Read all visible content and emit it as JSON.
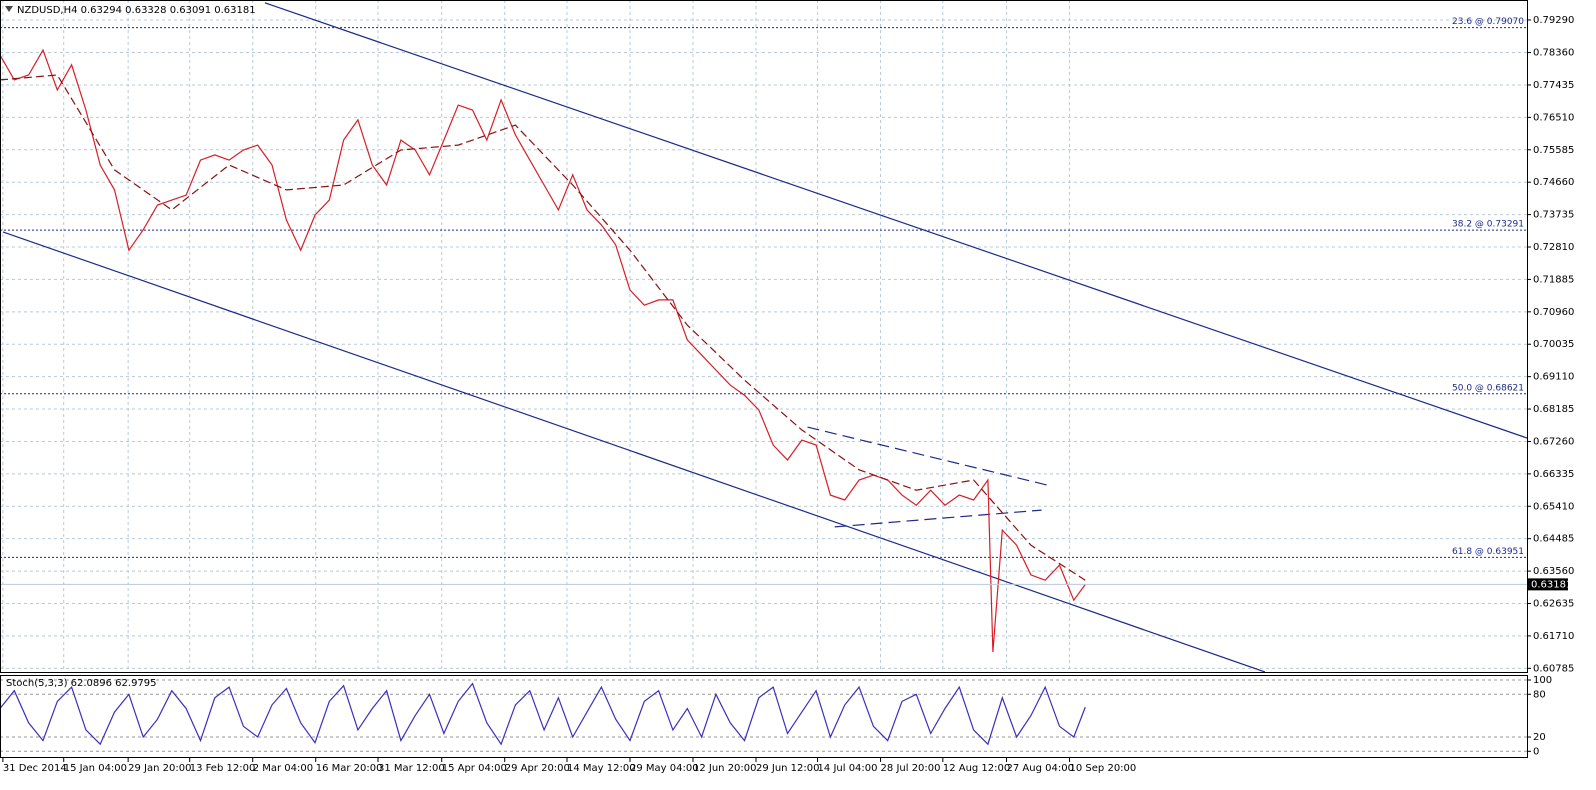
{
  "chart_data": [
    {
      "type": "line",
      "title": "NZDUSD,H4  0.63294 0.63328 0.63091 0.63181",
      "xlim": [
        0,
        2133
      ],
      "ylim": [
        0.6068,
        0.7986
      ],
      "grid": true,
      "xticks": [
        {
          "value": 4,
          "label": "31 Dec 2014"
        },
        {
          "value": 89,
          "label": "15 Jan 04:00"
        },
        {
          "value": 179,
          "label": "29 Jan 20:00"
        },
        {
          "value": 265,
          "label": "13 Feb 12:00"
        },
        {
          "value": 353,
          "label": "2 Mar 04:00"
        },
        {
          "value": 441,
          "label": "16 Mar 20:00"
        },
        {
          "value": 528,
          "label": "31 Mar 12:00"
        },
        {
          "value": 617,
          "label": "15 Apr 04:00"
        },
        {
          "value": 705,
          "label": "29 Apr 20:00"
        },
        {
          "value": 792,
          "label": "14 May 12:00"
        },
        {
          "value": 880,
          "label": "29 May 04:00"
        },
        {
          "value": 968,
          "label": "12 Jun 20:00"
        },
        {
          "value": 1056,
          "label": "29 Jun 12:00"
        },
        {
          "value": 1142,
          "label": "14 Jul 04:00"
        },
        {
          "value": 1230,
          "label": "28 Jul 20:00"
        },
        {
          "value": 1317,
          "label": "12 Aug 12:00"
        },
        {
          "value": 1406,
          "label": "27 Aug 04:00"
        },
        {
          "value": 1494,
          "label": "10 Sep 20:00"
        }
      ],
      "yticks": [
        {
          "value": 0.7929,
          "label": "0.79290"
        },
        {
          "value": 0.7836,
          "label": "0.78360"
        },
        0.77435,
        {
          "value": 0.7651,
          "label": "0.76510"
        },
        0.75585,
        {
          "value": 0.7466,
          "label": "0.74660"
        },
        0.73735,
        {
          "value": 0.7281,
          "label": "0.72810"
        },
        0.71885,
        {
          "value": 0.7096,
          "label": "0.70960"
        },
        0.70035,
        {
          "value": 0.6911,
          "label": "0.69110"
        },
        0.68185,
        {
          "value": 0.6726,
          "label": "0.67260"
        },
        0.66335,
        {
          "value": 0.6541,
          "label": "0.65410"
        },
        0.64485,
        {
          "value": 0.6356,
          "label": "0.63560"
        },
        0.62635,
        {
          "value": 0.6171,
          "label": "0.61710"
        },
        0.60785
      ],
      "series": [
        {
          "color": "#d81e26",
          "dash": false,
          "x": [
            0,
            20,
            40,
            60,
            80,
            100,
            120,
            140,
            160,
            180,
            200,
            220,
            240,
            260,
            280,
            300,
            320,
            340,
            360,
            380,
            400,
            420,
            440,
            460,
            480,
            500,
            520,
            540,
            560,
            580,
            600,
            620,
            640,
            660,
            680,
            700,
            720,
            740,
            760,
            780,
            800,
            820,
            840,
            860,
            880,
            900,
            920,
            940,
            960,
            980,
            1000,
            1020,
            1040,
            1060,
            1080,
            1100,
            1120,
            1140,
            1160,
            1180,
            1200,
            1220,
            1240,
            1260,
            1280,
            1300,
            1320,
            1340,
            1360,
            1380,
            1387,
            1400,
            1420,
            1440,
            1460,
            1480,
            1500,
            1516
          ],
          "values": [
            0.7829,
            0.7758,
            0.7772,
            0.7843,
            0.7729,
            0.7801,
            0.7672,
            0.7515,
            0.7444,
            0.7272,
            0.733,
            0.7401,
            0.7415,
            0.7429,
            0.7529,
            0.7544,
            0.7529,
            0.7558,
            0.7572,
            0.7515,
            0.7358,
            0.7272,
            0.7372,
            0.7415,
            0.7586,
            0.7644,
            0.7515,
            0.7458,
            0.7586,
            0.7558,
            0.7487,
            0.7586,
            0.7686,
            0.7672,
            0.7586,
            0.7701,
            0.7601,
            0.7529,
            0.7458,
            0.7387,
            0.7487,
            0.7387,
            0.7344,
            0.7287,
            0.7158,
            0.7115,
            0.713,
            0.713,
            0.7016,
            0.6973,
            0.693,
            0.6887,
            0.6858,
            0.6816,
            0.6716,
            0.6673,
            0.673,
            0.6716,
            0.6573,
            0.6559,
            0.6616,
            0.663,
            0.6616,
            0.6573,
            0.6544,
            0.6587,
            0.6544,
            0.6573,
            0.6559,
            0.6616,
            0.6125,
            0.6473,
            0.643,
            0.6345,
            0.633,
            0.6373,
            0.6273,
            0.63181
          ]
        },
        {
          "color": "#8b1010",
          "dash": true,
          "x": [
            0,
            80,
            160,
            240,
            320,
            400,
            480,
            560,
            640,
            720,
            800,
            880,
            960,
            1040,
            1120,
            1200,
            1280,
            1360,
            1440,
            1516
          ],
          "values": [
            0.7758,
            0.7772,
            0.7501,
            0.7387,
            0.7515,
            0.7444,
            0.7458,
            0.7558,
            0.7572,
            0.7629,
            0.7458,
            0.7272,
            0.7058,
            0.6901,
            0.6759,
            0.6645,
            0.6587,
            0.6616,
            0.643,
            0.633
          ]
        }
      ],
      "trendlines": [
        {
          "color": "#1c2a8a",
          "dash": false,
          "x": [
            370,
            2133
          ],
          "values": [
            0.7978,
            0.6736
          ]
        },
        {
          "color": "#1c2a8a",
          "dash": false,
          "x": [
            4,
            1767
          ],
          "values": [
            0.7324,
            0.6068
          ]
        },
        {
          "color": "#1c2a8a",
          "dash": true,
          "x": [
            1128,
            1462
          ],
          "values": [
            0.6767,
            0.6602
          ]
        },
        {
          "color": "#1c2a8a",
          "dash": true,
          "x": [
            1166,
            1455
          ],
          "values": [
            0.6482,
            0.653
          ]
        }
      ],
      "hlines": [
        {
          "value": 0.7907,
          "label": "23.6 @ 0.79070"
        },
        {
          "value": 0.73291,
          "label": "38.2 @ 0.73291"
        },
        {
          "value": 0.68621,
          "label": "50.0 @ 0.68621"
        },
        {
          "value": 0.63951,
          "label": "61.8 @ 0.63951"
        }
      ],
      "hline_color": "#1c2a8a",
      "last_price": 0.63181
    },
    {
      "type": "line",
      "title": "Stoch(5,3,3) 62.0896 62.9795",
      "xlim": [
        0,
        2133
      ],
      "ylim": [
        -8,
        107
      ],
      "yticks": [
        100,
        80,
        20,
        0
      ],
      "series": [
        {
          "color": "#3a2fc0",
          "dash": false,
          "x": [
            0,
            20,
            40,
            60,
            80,
            100,
            120,
            140,
            160,
            180,
            200,
            220,
            240,
            260,
            280,
            300,
            320,
            340,
            360,
            380,
            400,
            420,
            440,
            460,
            480,
            500,
            520,
            540,
            560,
            580,
            600,
            620,
            640,
            660,
            680,
            700,
            720,
            740,
            760,
            780,
            800,
            820,
            840,
            860,
            880,
            900,
            920,
            940,
            960,
            980,
            1000,
            1020,
            1040,
            1060,
            1080,
            1100,
            1120,
            1140,
            1160,
            1180,
            1200,
            1220,
            1240,
            1260,
            1280,
            1300,
            1320,
            1340,
            1360,
            1380,
            1400,
            1420,
            1440,
            1460,
            1480,
            1500,
            1516
          ],
          "values": [
            60,
            85,
            40,
            15,
            70,
            90,
            30,
            10,
            55,
            80,
            20,
            45,
            85,
            60,
            15,
            75,
            90,
            35,
            20,
            65,
            88,
            40,
            12,
            70,
            92,
            30,
            60,
            85,
            15,
            50,
            80,
            25,
            70,
            95,
            40,
            10,
            65,
            85,
            30,
            75,
            20,
            55,
            90,
            45,
            15,
            70,
            85,
            30,
            60,
            20,
            80,
            40,
            15,
            75,
            90,
            25,
            55,
            85,
            20,
            65,
            90,
            35,
            15,
            70,
            80,
            25,
            60,
            90,
            30,
            10,
            75,
            20,
            50,
            90,
            35,
            20,
            62
          ]
        }
      ]
    }
  ]
}
